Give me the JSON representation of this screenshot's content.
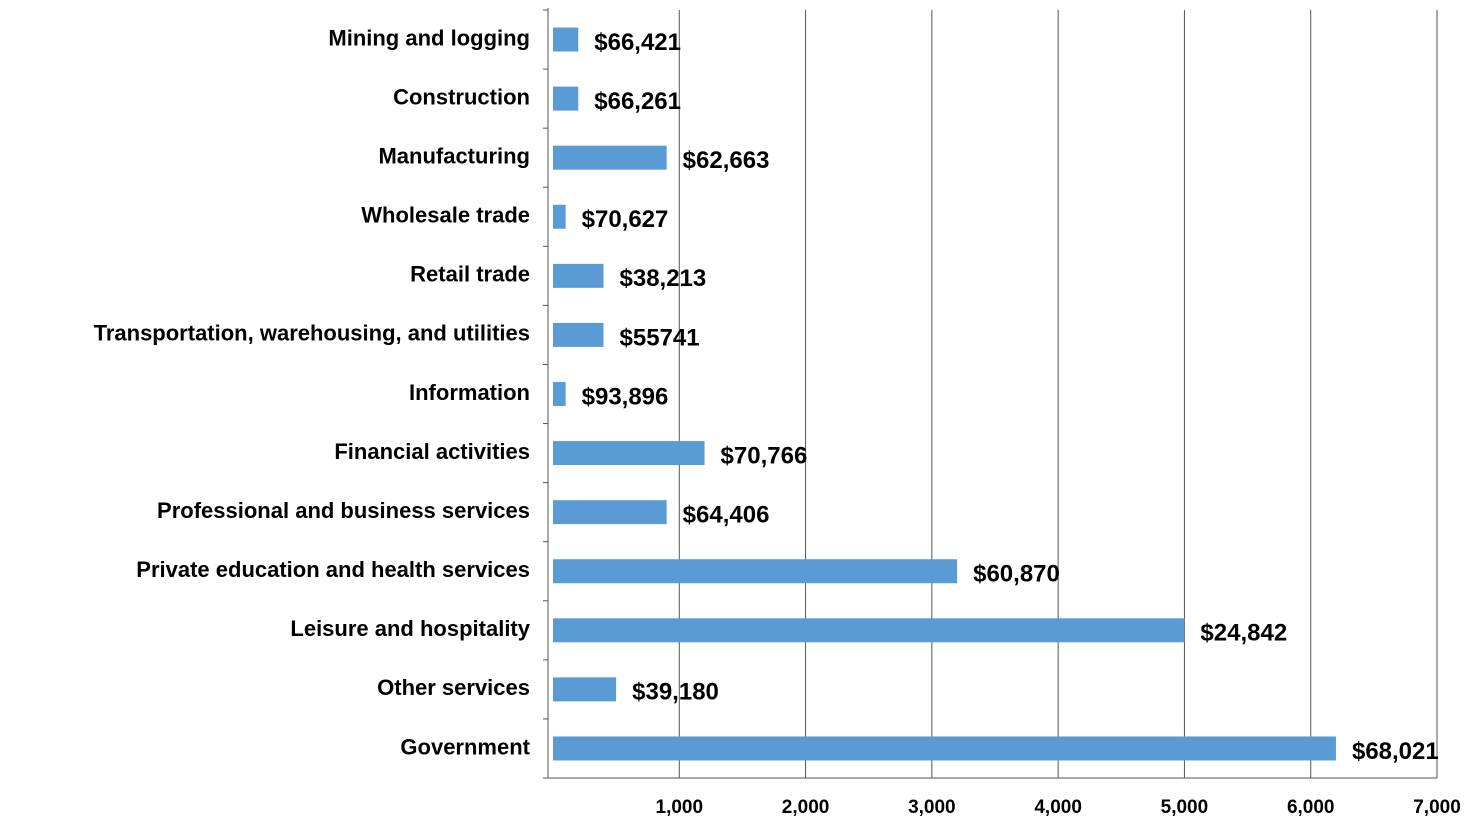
{
  "chart_data": {
    "type": "barh",
    "categories": [
      "Mining and logging",
      "Construction",
      "Manufacturing",
      "Wholesale trade",
      "Retail trade",
      "Transportation, warehousing, and utilities",
      "Information",
      "Financial activities",
      "Professional and business services",
      "Private education and health services",
      "Leisure and hospitality",
      "Other services",
      "Government"
    ],
    "values": [
      200,
      200,
      900,
      100,
      400,
      400,
      100,
      1200,
      900,
      3200,
      5000,
      500,
      6200
    ],
    "annotations": [
      "$66,421",
      "$66,261",
      "$62,663",
      "$70,627",
      "$38,213",
      "$55741",
      "$93,896",
      "$70,766",
      "$64,406",
      "$60,870",
      "$24,842",
      "$39,180",
      "$68,021"
    ],
    "color": "#5b9bd5",
    "xlim": [
      0,
      7000
    ],
    "xticks": [
      {
        "value": 1000,
        "label": "1,000"
      },
      {
        "value": 2000,
        "label": "2,000"
      },
      {
        "value": 3000,
        "label": "3,000"
      },
      {
        "value": 4000,
        "label": "4,000"
      },
      {
        "value": 5000,
        "label": "5,000"
      },
      {
        "value": 6000,
        "label": "6,000"
      },
      {
        "value": 7000,
        "label": "7,000"
      }
    ],
    "grid": true
  }
}
